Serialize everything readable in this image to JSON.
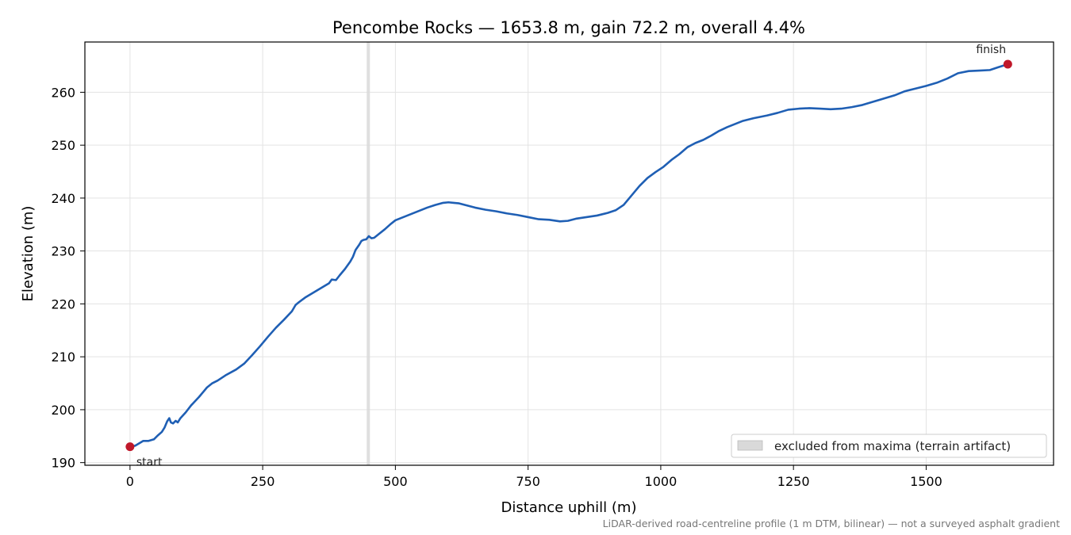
{
  "chart_data": {
    "type": "line",
    "title": "Pencombe Rocks — 1653.8 m, gain 72.2 m, overall 4.4%",
    "xlabel": "Distance uphill (m)",
    "ylabel": "Elevation (m)",
    "xlim": [
      -85,
      1740
    ],
    "ylim": [
      189.5,
      269.5
    ],
    "xticks": [
      0,
      250,
      500,
      750,
      1000,
      1250,
      1500
    ],
    "yticks": [
      190,
      200,
      210,
      220,
      230,
      240,
      250,
      260
    ],
    "grid": true,
    "legend_position": "bottom-right",
    "legend": [
      {
        "label": "excluded from maxima (terrain artifact)",
        "color": "#d9d9d9"
      }
    ],
    "excluded_band": {
      "x_start": 446,
      "x_end": 452,
      "color": "#d9d9d9"
    },
    "series": [
      {
        "color": "#1f5fb4",
        "points": [
          [
            0,
            193.0
          ],
          [
            10,
            193.2
          ],
          [
            20,
            193.8
          ],
          [
            25,
            194.1
          ],
          [
            35,
            194.1
          ],
          [
            45,
            194.4
          ],
          [
            52,
            195.1
          ],
          [
            60,
            195.8
          ],
          [
            65,
            196.6
          ],
          [
            70,
            197.8
          ],
          [
            74,
            198.4
          ],
          [
            77,
            197.6
          ],
          [
            81,
            197.4
          ],
          [
            86,
            197.9
          ],
          [
            90,
            197.6
          ],
          [
            95,
            198.4
          ],
          [
            105,
            199.5
          ],
          [
            115,
            200.8
          ],
          [
            130,
            202.4
          ],
          [
            145,
            204.2
          ],
          [
            155,
            205.0
          ],
          [
            165,
            205.5
          ],
          [
            180,
            206.5
          ],
          [
            200,
            207.6
          ],
          [
            215,
            208.7
          ],
          [
            230,
            210.3
          ],
          [
            245,
            212.0
          ],
          [
            260,
            213.8
          ],
          [
            275,
            215.5
          ],
          [
            290,
            217.0
          ],
          [
            305,
            218.6
          ],
          [
            312,
            219.8
          ],
          [
            318,
            220.3
          ],
          [
            330,
            221.2
          ],
          [
            345,
            222.1
          ],
          [
            360,
            223.0
          ],
          [
            375,
            223.9
          ],
          [
            380,
            224.6
          ],
          [
            388,
            224.5
          ],
          [
            395,
            225.4
          ],
          [
            405,
            226.6
          ],
          [
            415,
            228.0
          ],
          [
            420,
            228.9
          ],
          [
            425,
            230.2
          ],
          [
            432,
            231.2
          ],
          [
            436,
            231.9
          ],
          [
            440,
            232.1
          ],
          [
            445,
            232.2
          ],
          [
            450,
            232.8
          ],
          [
            455,
            232.4
          ],
          [
            460,
            232.5
          ],
          [
            470,
            233.3
          ],
          [
            480,
            234.1
          ],
          [
            490,
            235.0
          ],
          [
            500,
            235.8
          ],
          [
            515,
            236.4
          ],
          [
            530,
            237.0
          ],
          [
            545,
            237.6
          ],
          [
            560,
            238.2
          ],
          [
            575,
            238.7
          ],
          [
            590,
            239.1
          ],
          [
            600,
            239.2
          ],
          [
            610,
            239.1
          ],
          [
            620,
            239.0
          ],
          [
            635,
            238.6
          ],
          [
            650,
            238.2
          ],
          [
            670,
            237.8
          ],
          [
            690,
            237.5
          ],
          [
            710,
            237.1
          ],
          [
            730,
            236.8
          ],
          [
            750,
            236.4
          ],
          [
            770,
            236.0
          ],
          [
            790,
            235.9
          ],
          [
            810,
            235.6
          ],
          [
            825,
            235.7
          ],
          [
            840,
            236.1
          ],
          [
            860,
            236.4
          ],
          [
            880,
            236.7
          ],
          [
            900,
            237.2
          ],
          [
            915,
            237.7
          ],
          [
            930,
            238.7
          ],
          [
            945,
            240.5
          ],
          [
            960,
            242.3
          ],
          [
            975,
            243.8
          ],
          [
            990,
            244.9
          ],
          [
            1005,
            245.9
          ],
          [
            1020,
            247.2
          ],
          [
            1035,
            248.3
          ],
          [
            1050,
            249.6
          ],
          [
            1065,
            250.4
          ],
          [
            1080,
            251.0
          ],
          [
            1095,
            251.8
          ],
          [
            1110,
            252.7
          ],
          [
            1125,
            253.4
          ],
          [
            1140,
            254.0
          ],
          [
            1155,
            254.6
          ],
          [
            1175,
            255.1
          ],
          [
            1200,
            255.6
          ],
          [
            1220,
            256.1
          ],
          [
            1240,
            256.7
          ],
          [
            1260,
            256.9
          ],
          [
            1280,
            257.0
          ],
          [
            1300,
            256.9
          ],
          [
            1320,
            256.8
          ],
          [
            1340,
            256.9
          ],
          [
            1360,
            257.2
          ],
          [
            1380,
            257.6
          ],
          [
            1400,
            258.2
          ],
          [
            1420,
            258.8
          ],
          [
            1440,
            259.4
          ],
          [
            1460,
            260.2
          ],
          [
            1480,
            260.7
          ],
          [
            1500,
            261.2
          ],
          [
            1520,
            261.8
          ],
          [
            1540,
            262.6
          ],
          [
            1560,
            263.6
          ],
          [
            1580,
            264.0
          ],
          [
            1600,
            264.1
          ],
          [
            1620,
            264.2
          ],
          [
            1635,
            264.7
          ],
          [
            1653.8,
            265.3
          ]
        ]
      }
    ],
    "markers": [
      {
        "x": 0,
        "y": 193.0,
        "label": "start",
        "color": "#c0182a"
      },
      {
        "x": 1653.8,
        "y": 265.3,
        "label": "finish",
        "color": "#c0182a"
      }
    ],
    "footnote": "LiDAR-derived road-centreline profile (1 m DTM, bilinear) — not a surveyed asphalt gradient"
  }
}
